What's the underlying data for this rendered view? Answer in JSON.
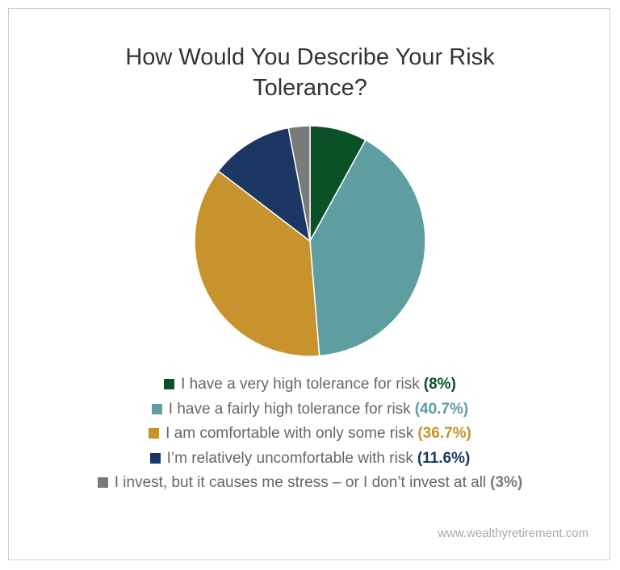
{
  "chart_data": {
    "type": "pie",
    "title": "How Would You Describe Your Risk Tolerance?",
    "categories": [
      "I have a very high tolerance for risk",
      "I have a fairly high tolerance for risk",
      "I am comfortable with only some risk",
      "I’m relatively uncomfortable with risk",
      "I invest, but it causes me stress – or I don’t invest at all"
    ],
    "values": [
      8,
      40.7,
      36.7,
      11.6,
      3
    ],
    "value_labels": [
      "(8%)",
      "(40.7%)",
      "(36.7%)",
      "(11.6%)",
      "(3%)"
    ],
    "colors": [
      "#0b5128",
      "#5f9ea0",
      "#c8922e",
      "#1c3764",
      "#7a7a7a"
    ],
    "source": "www.wealthyretirement.com"
  }
}
